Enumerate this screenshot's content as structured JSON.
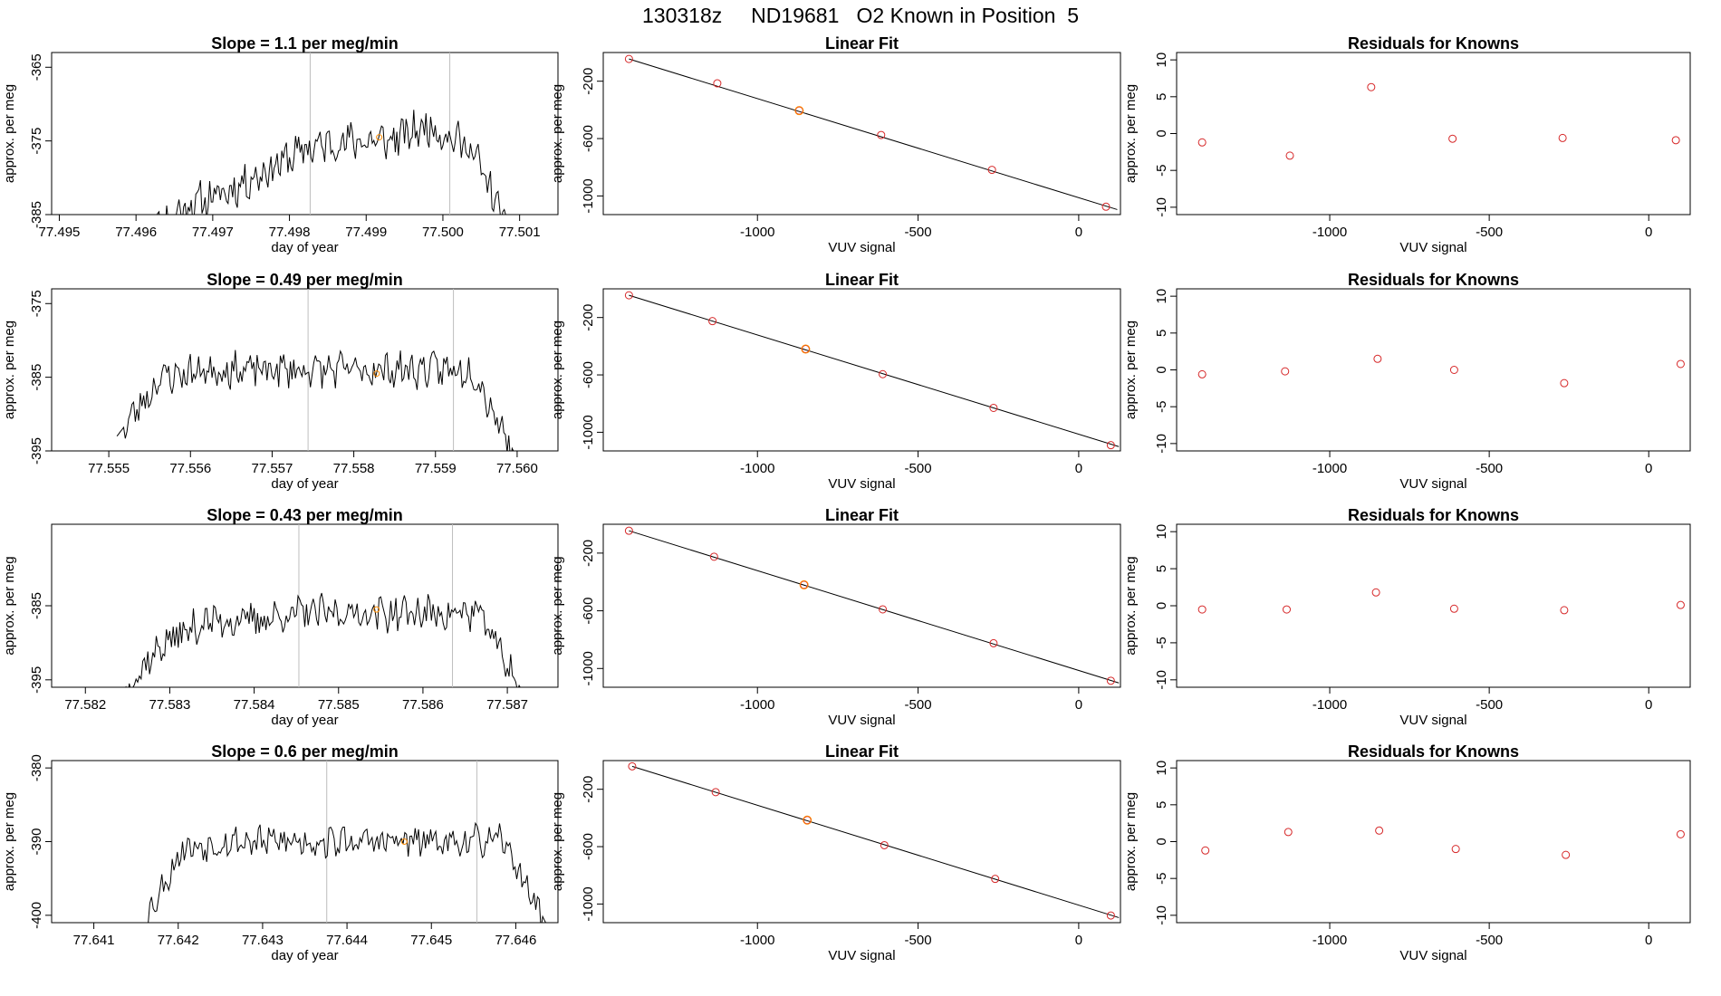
{
  "title": "130318z     ND19681   O2 Known in Position  5",
  "colors": {
    "line": "#000000",
    "gray_marker": "#bebebe",
    "point": "#d62728",
    "highlight": "#ff8c00"
  },
  "labels": {
    "ts_xlabel": "day of year",
    "ts_ylabel": "approx. per meg",
    "fit_title": "Linear Fit",
    "fit_xlabel": "VUV signal",
    "fit_ylabel": "approx. per meg",
    "res_title": "Residuals for Knowns",
    "res_xlabel": "VUV signal",
    "res_ylabel": "approx. per meg"
  },
  "chart_data": [
    {
      "type": "line",
      "panel": "time-series",
      "row": 1,
      "title": "Slope =  1.1  per meg/min",
      "xlabel": "day of year",
      "ylabel": "approx. per meg",
      "xlim": [
        77.4949,
        77.5015
      ],
      "ylim": [
        -385,
        -363
      ],
      "xticks": [
        "77.495",
        "77.496",
        "77.497",
        "77.498",
        "77.499",
        "77.500",
        "77.501"
      ],
      "xtick_values": [
        77.495,
        77.496,
        77.497,
        77.498,
        77.499,
        77.5,
        77.501
      ],
      "yticks": [
        "-385",
        "-375",
        "-365"
      ],
      "ytick_values": [
        -385,
        -375,
        -365
      ],
      "x_start": 77.4961,
      "x_end": 77.5009,
      "levels": [
        -388,
        -384,
        -382,
        -379,
        -376,
        -375,
        -375,
        -373,
        -376,
        -388
      ],
      "noise": 2.2,
      "seed": 11,
      "markers": [
        77.49827,
        77.50009
      ],
      "highlight": [
        77.49917,
        -374.5
      ]
    },
    {
      "type": "line",
      "panel": "time-series",
      "row": 2,
      "title": "Slope =  0.49  per meg/min",
      "xlabel": "day of year",
      "ylabel": "approx. per meg",
      "xlim": [
        77.5543,
        77.5605
      ],
      "ylim": [
        -395,
        -373
      ],
      "xticks": [
        "77.555",
        "77.556",
        "77.557",
        "77.558",
        "77.559",
        "77.560"
      ],
      "xtick_values": [
        77.555,
        77.556,
        77.557,
        77.558,
        77.559,
        77.56
      ],
      "yticks": [
        "-395",
        "-385",
        "-375"
      ],
      "ytick_values": [
        -395,
        -385,
        -375
      ],
      "x_start": 77.5551,
      "x_end": 77.56,
      "levels": [
        -393,
        -385,
        -384,
        -384,
        -384,
        -384,
        -384,
        -384,
        -384,
        -396
      ],
      "noise": 2.0,
      "seed": 23,
      "markers": [
        77.55744,
        77.55922
      ],
      "highlight": [
        77.55828,
        -384.5
      ]
    },
    {
      "type": "line",
      "panel": "time-series",
      "row": 3,
      "title": "Slope =  0.43  per meg/min",
      "xlabel": "day of year",
      "ylabel": "approx. per meg",
      "xlim": [
        77.5816,
        77.5876
      ],
      "ylim": [
        -396,
        -374
      ],
      "xticks": [
        "77.582",
        "77.583",
        "77.584",
        "77.585",
        "77.586",
        "77.587"
      ],
      "xtick_values": [
        77.582,
        77.583,
        77.584,
        77.585,
        77.586,
        77.587
      ],
      "yticks": [
        "-395",
        "-385"
      ],
      "ytick_values": [
        -395,
        -385
      ],
      "x_start": 77.5824,
      "x_end": 77.5872,
      "levels": [
        -397,
        -390,
        -387,
        -387,
        -386,
        -386,
        -386,
        -386,
        -386,
        -397
      ],
      "noise": 2.0,
      "seed": 37,
      "markers": [
        77.58453,
        77.58635
      ],
      "highlight": [
        77.58545,
        -385.5
      ]
    },
    {
      "type": "line",
      "panel": "time-series",
      "row": 4,
      "title": "Slope =  0.6  per meg/min",
      "xlabel": "day of year",
      "ylabel": "approx. per meg",
      "xlim": [
        77.6405,
        77.6465
      ],
      "ylim": [
        -401,
        -379
      ],
      "xticks": [
        "77.641",
        "77.642",
        "77.643",
        "77.644",
        "77.645",
        "77.646"
      ],
      "xtick_values": [
        77.641,
        77.642,
        77.643,
        77.644,
        77.645,
        77.646
      ],
      "yticks": [
        "-400",
        "-390",
        "-380"
      ],
      "ytick_values": [
        -400,
        -390,
        -380
      ],
      "x_start": 77.6415,
      "x_end": 77.6464,
      "levels": [
        -403,
        -391,
        -390,
        -390,
        -390,
        -390,
        -390,
        -390,
        -390,
        -402
      ],
      "noise": 1.8,
      "seed": 53,
      "markers": [
        77.64376,
        77.64554
      ],
      "highlight": [
        77.64468,
        -390
      ]
    },
    {
      "type": "scatter",
      "panel": "linear-fit",
      "row": 1,
      "title": "Linear Fit",
      "xlabel": "VUV signal",
      "ylabel": "approx. per meg",
      "xlim": [
        -1480,
        130
      ],
      "ylim": [
        -1130,
        0
      ],
      "xticks": [
        "-1000",
        "-500",
        "0"
      ],
      "xtick_values": [
        -1000,
        -500,
        0
      ],
      "yticks": [
        "-1000",
        "-600",
        "-200"
      ],
      "ytick_values": [
        -1000,
        -600,
        -200
      ],
      "points": [
        [
          -1400,
          -45
        ],
        [
          -1125,
          -215
        ],
        [
          -870,
          -405
        ],
        [
          -615,
          -575
        ],
        [
          -270,
          -818
        ],
        [
          85,
          -1075
        ]
      ],
      "highlight_index": 2,
      "line": [
        [
          -1400,
          -45
        ],
        [
          120,
          -1095
        ]
      ]
    },
    {
      "type": "scatter",
      "panel": "linear-fit",
      "row": 2,
      "title": "Linear Fit",
      "xlabel": "VUV signal",
      "ylabel": "approx. per meg",
      "xlim": [
        -1480,
        130
      ],
      "ylim": [
        -1130,
        0
      ],
      "xticks": [
        "-1000",
        "-500",
        "0"
      ],
      "xtick_values": [
        -1000,
        -500,
        0
      ],
      "yticks": [
        "-1000",
        "-600",
        "-200"
      ],
      "ytick_values": [
        -1000,
        -600,
        -200
      ],
      "points": [
        [
          -1400,
          -45
        ],
        [
          -1140,
          -225
        ],
        [
          -850,
          -420
        ],
        [
          -610,
          -595
        ],
        [
          -265,
          -830
        ],
        [
          100,
          -1090
        ]
      ],
      "highlight_index": 2,
      "line": [
        [
          -1400,
          -45
        ],
        [
          125,
          -1100
        ]
      ]
    },
    {
      "type": "scatter",
      "panel": "linear-fit",
      "row": 3,
      "title": "Linear Fit",
      "xlabel": "VUV signal",
      "ylabel": "approx. per meg",
      "xlim": [
        -1480,
        130
      ],
      "ylim": [
        -1130,
        0
      ],
      "xticks": [
        "-1000",
        "-500",
        "0"
      ],
      "xtick_values": [
        -1000,
        -500,
        0
      ],
      "yticks": [
        "-1000",
        "-600",
        "-200"
      ],
      "ytick_values": [
        -1000,
        -600,
        -200
      ],
      "points": [
        [
          -1400,
          -45
        ],
        [
          -1135,
          -225
        ],
        [
          -855,
          -420
        ],
        [
          -610,
          -590
        ],
        [
          -265,
          -825
        ],
        [
          100,
          -1085
        ]
      ],
      "highlight_index": 2,
      "line": [
        [
          -1400,
          -45
        ],
        [
          125,
          -1100
        ]
      ]
    },
    {
      "type": "scatter",
      "panel": "linear-fit",
      "row": 4,
      "title": "Linear Fit",
      "xlabel": "VUV signal",
      "ylabel": "approx. per meg",
      "xlim": [
        -1480,
        130
      ],
      "ylim": [
        -1130,
        0
      ],
      "xticks": [
        "-1000",
        "-500",
        "0"
      ],
      "xtick_values": [
        -1000,
        -500,
        0
      ],
      "yticks": [
        "-1000",
        "-600",
        "-200"
      ],
      "ytick_values": [
        -1000,
        -600,
        -200
      ],
      "points": [
        [
          -1390,
          -40
        ],
        [
          -1130,
          -220
        ],
        [
          -845,
          -415
        ],
        [
          -605,
          -590
        ],
        [
          -260,
          -825
        ],
        [
          100,
          -1080
        ]
      ],
      "highlight_index": 2,
      "line": [
        [
          -1390,
          -40
        ],
        [
          125,
          -1095
        ]
      ]
    },
    {
      "type": "scatter",
      "panel": "residuals",
      "row": 1,
      "title": "Residuals for Knowns",
      "xlabel": "VUV signal",
      "ylabel": "approx. per meg",
      "xlim": [
        -1480,
        130
      ],
      "ylim": [
        -11,
        11
      ],
      "xticks": [
        "-1000",
        "-500",
        "0"
      ],
      "xtick_values": [
        -1000,
        -500,
        0
      ],
      "yticks": [
        "-10",
        "-5",
        "0",
        "5",
        "10"
      ],
      "ytick_values": [
        -10,
        -5,
        0,
        5,
        10
      ],
      "points": [
        [
          -1400,
          -1.2
        ],
        [
          -1125,
          -3.0
        ],
        [
          -870,
          6.3
        ],
        [
          -615,
          -0.7
        ],
        [
          -270,
          -0.6
        ],
        [
          85,
          -0.9
        ]
      ]
    },
    {
      "type": "scatter",
      "panel": "residuals",
      "row": 2,
      "title": "Residuals for Knowns",
      "xlabel": "VUV signal",
      "ylabel": "approx. per meg",
      "xlim": [
        -1480,
        130
      ],
      "ylim": [
        -11,
        11
      ],
      "xticks": [
        "-1000",
        "-500",
        "0"
      ],
      "xtick_values": [
        -1000,
        -500,
        0
      ],
      "yticks": [
        "-10",
        "-5",
        "0",
        "5",
        "10"
      ],
      "ytick_values": [
        -10,
        -5,
        0,
        5,
        10
      ],
      "points": [
        [
          -1400,
          -0.6
        ],
        [
          -1140,
          -0.2
        ],
        [
          -850,
          1.5
        ],
        [
          -610,
          0.0
        ],
        [
          -265,
          -1.8
        ],
        [
          100,
          0.8
        ]
      ]
    },
    {
      "type": "scatter",
      "panel": "residuals",
      "row": 3,
      "title": "Residuals for Knowns",
      "xlabel": "VUV signal",
      "ylabel": "approx. per meg",
      "xlim": [
        -1480,
        130
      ],
      "ylim": [
        -11,
        11
      ],
      "xticks": [
        "-1000",
        "-500",
        "0"
      ],
      "xtick_values": [
        -1000,
        -500,
        0
      ],
      "yticks": [
        "-10",
        "-5",
        "0",
        "5",
        "10"
      ],
      "ytick_values": [
        -10,
        -5,
        0,
        5,
        10
      ],
      "points": [
        [
          -1400,
          -0.5
        ],
        [
          -1135,
          -0.5
        ],
        [
          -855,
          1.8
        ],
        [
          -610,
          -0.4
        ],
        [
          -265,
          -0.6
        ],
        [
          100,
          0.1
        ]
      ]
    },
    {
      "type": "scatter",
      "panel": "residuals",
      "row": 4,
      "title": "Residuals for Knowns",
      "xlabel": "VUV signal",
      "ylabel": "approx. per meg",
      "xlim": [
        -1480,
        130
      ],
      "ylim": [
        -11,
        11
      ],
      "xticks": [
        "-1000",
        "-500",
        "0"
      ],
      "xtick_values": [
        -1000,
        -500,
        0
      ],
      "yticks": [
        "-10",
        "-5",
        "0",
        "5",
        "10"
      ],
      "ytick_values": [
        -10,
        -5,
        0,
        5,
        10
      ],
      "points": [
        [
          -1390,
          -1.2
        ],
        [
          -1130,
          1.3
        ],
        [
          -845,
          1.5
        ],
        [
          -605,
          -1.0
        ],
        [
          -260,
          -1.8
        ],
        [
          100,
          1.0
        ]
      ]
    }
  ]
}
